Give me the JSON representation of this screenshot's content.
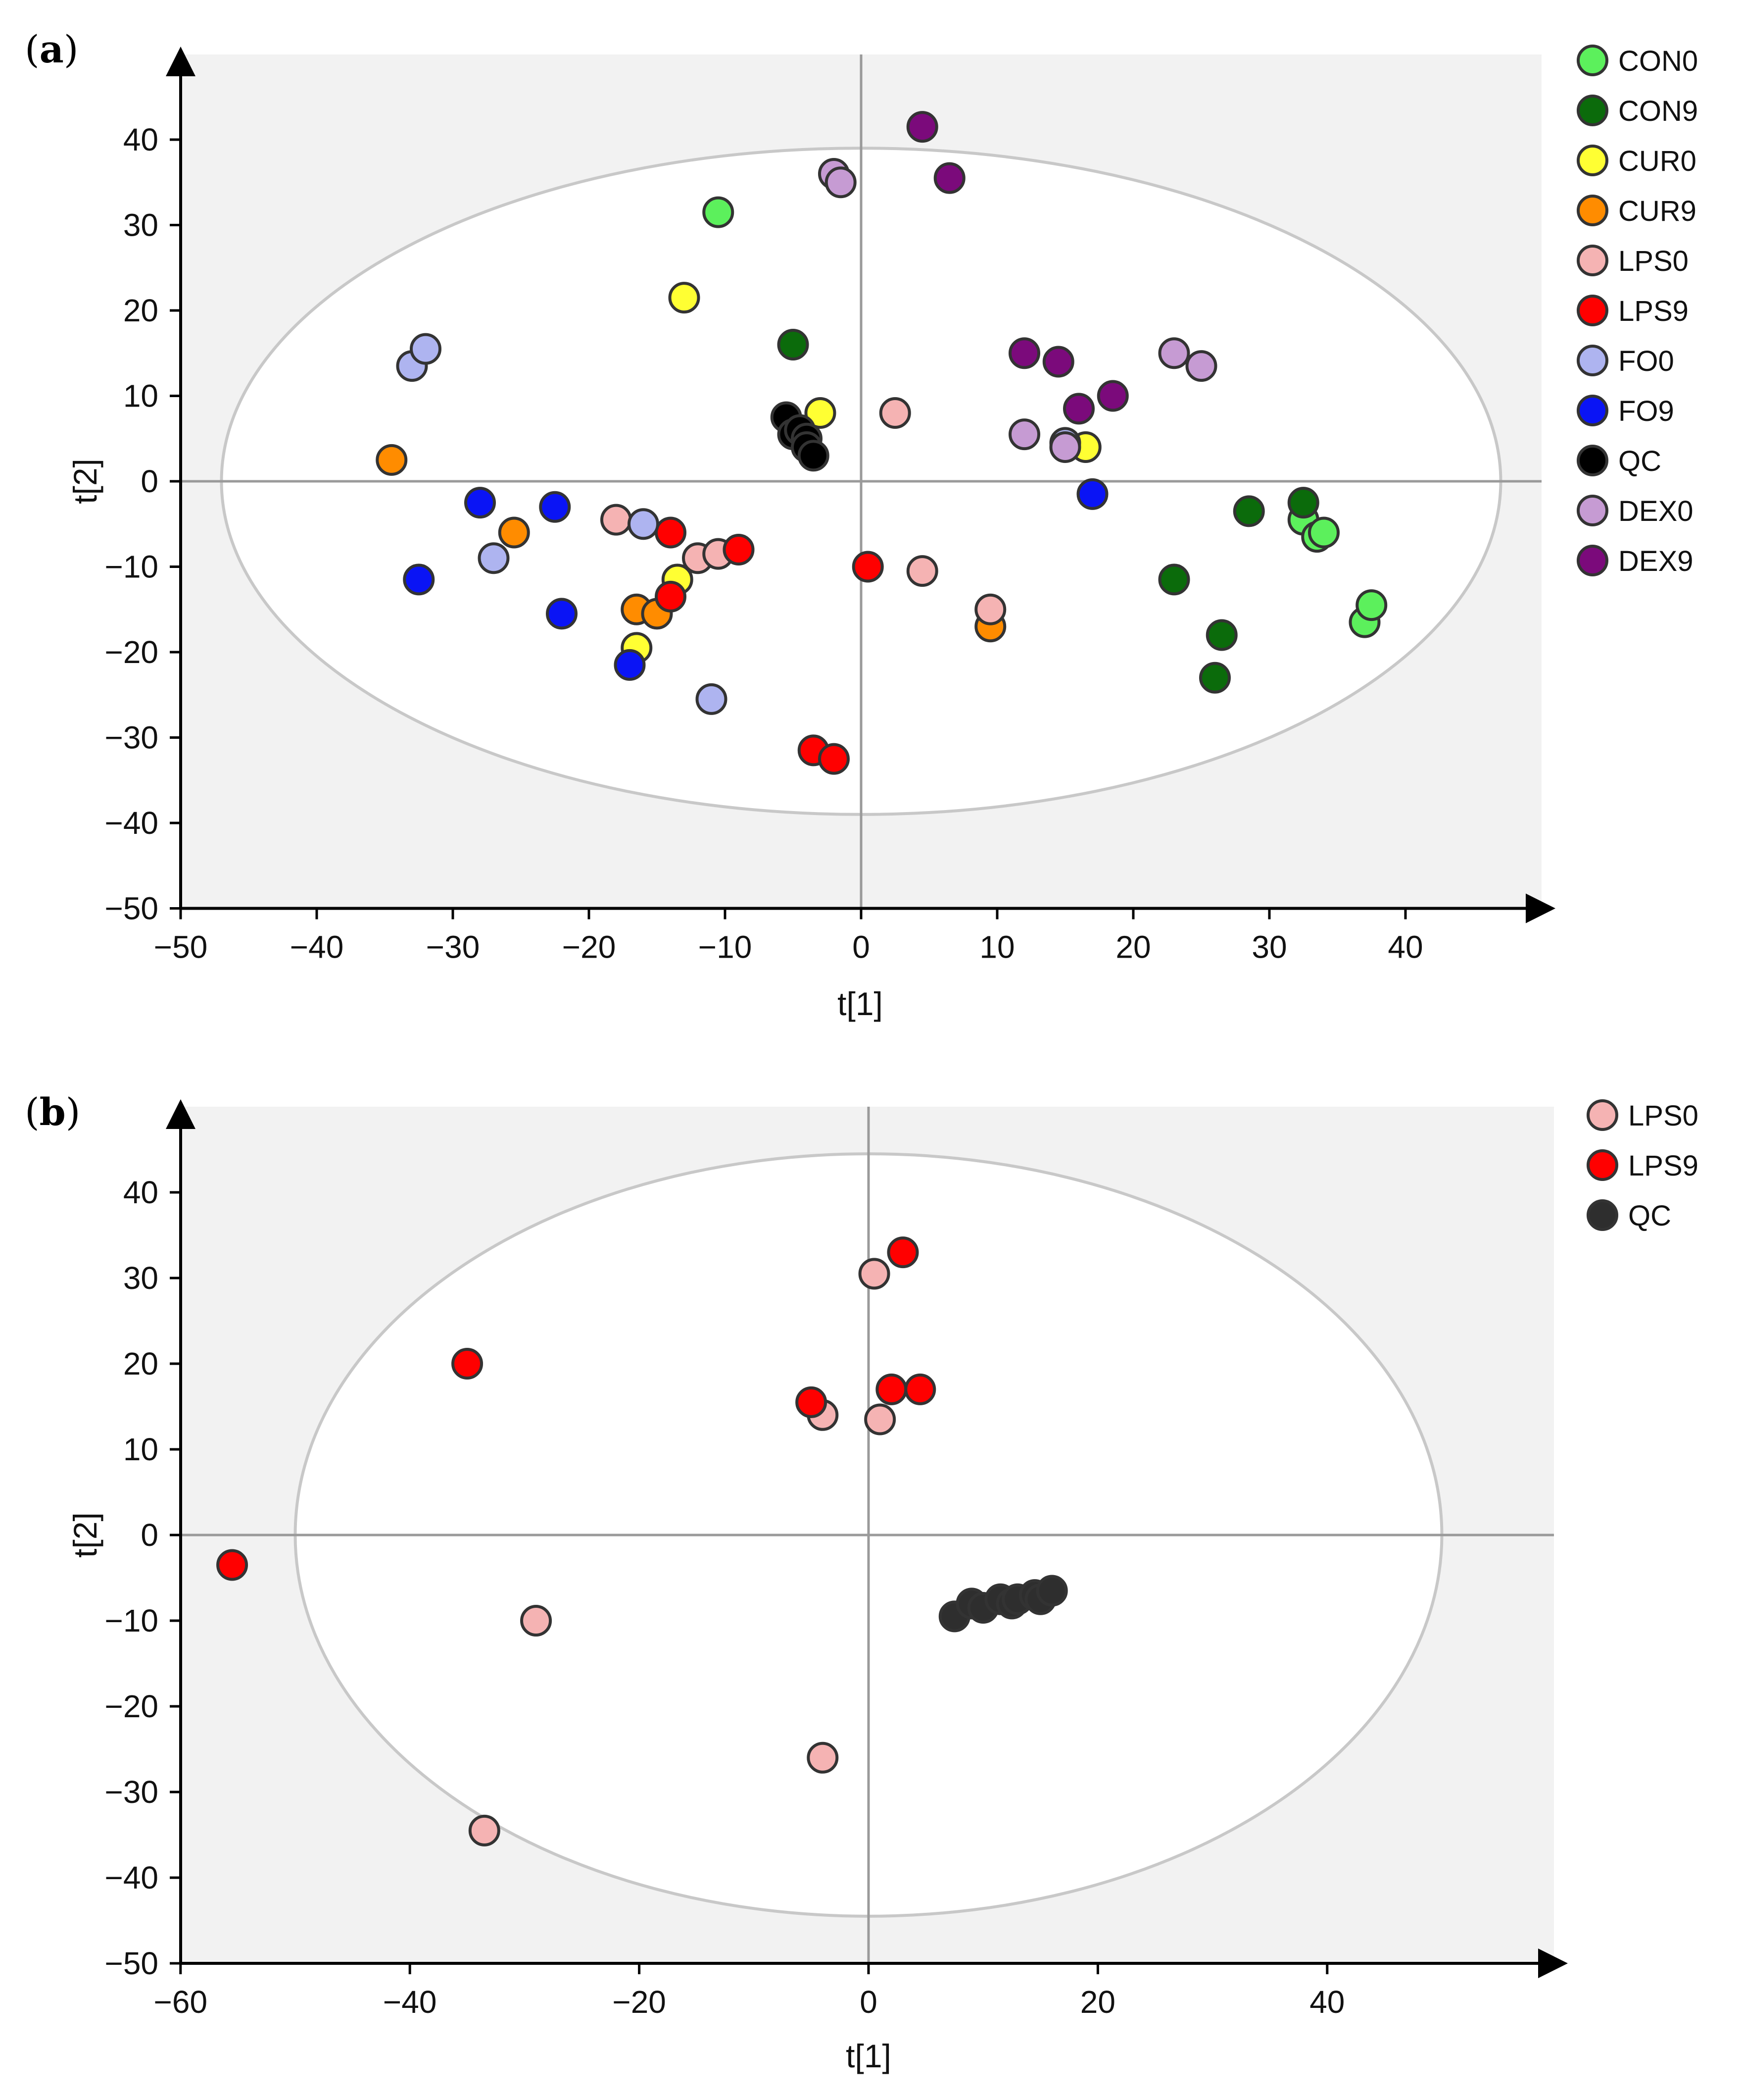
{
  "chart_data": [
    {
      "type": "scatter",
      "panel_label": "(a)",
      "panel_letter": "a",
      "xlabel": "t[1]",
      "ylabel": "t[2]",
      "xlim": [
        -50,
        50
      ],
      "ylim": [
        -50,
        50
      ],
      "xticks": [
        -50,
        -40,
        -30,
        -20,
        -10,
        0,
        10,
        20,
        30,
        40
      ],
      "yticks": [
        -50,
        -40,
        -30,
        -20,
        -10,
        0,
        10,
        20,
        30,
        40
      ],
      "ellipse": {
        "rx": 47,
        "ry": 39
      },
      "legend_position": "right",
      "series": [
        {
          "name": "CON0",
          "color": "#5CF05C",
          "points": [
            [
              -10.5,
              31.5
            ],
            [
              32.5,
              -4.5
            ],
            [
              33.5,
              -6.5
            ],
            [
              34,
              -6
            ],
            [
              37,
              -16.5
            ],
            [
              37.5,
              -14.5
            ]
          ]
        },
        {
          "name": "CON9",
          "color": "#0B6B0B",
          "points": [
            [
              -5,
              16
            ],
            [
              23,
              -11.5
            ],
            [
              26.5,
              -18
            ],
            [
              26,
              -23
            ],
            [
              28.5,
              -3.5
            ],
            [
              32.5,
              -2.5
            ]
          ]
        },
        {
          "name": "CUR0",
          "color": "#FFFF33",
          "points": [
            [
              -13,
              21.5
            ],
            [
              -3,
              8
            ],
            [
              16.5,
              4
            ],
            [
              -13.5,
              -11.5
            ],
            [
              -16.5,
              -19.5
            ]
          ]
        },
        {
          "name": "CUR9",
          "color": "#FF8C00",
          "points": [
            [
              -34.5,
              2.5
            ],
            [
              -25.5,
              -6
            ],
            [
              -16.5,
              -15
            ],
            [
              -15,
              -15.5
            ],
            [
              9.5,
              -17
            ]
          ]
        },
        {
          "name": "LPS0",
          "color": "#F5B3B3",
          "points": [
            [
              2.5,
              8
            ],
            [
              -18,
              -4.5
            ],
            [
              -12,
              -9
            ],
            [
              -10.5,
              -8.5
            ],
            [
              4.5,
              -10.5
            ],
            [
              9.5,
              -15
            ]
          ]
        },
        {
          "name": "LPS9",
          "color": "#FF0000",
          "points": [
            [
              -14,
              -6
            ],
            [
              -9,
              -8
            ],
            [
              0.5,
              -10
            ],
            [
              -14,
              -13.5
            ],
            [
              -3.5,
              -31.5
            ],
            [
              -2,
              -32.5
            ]
          ]
        },
        {
          "name": "FO0",
          "color": "#AEB4F0",
          "points": [
            [
              -33,
              13.5
            ],
            [
              -32,
              15.5
            ],
            [
              -27,
              -9
            ],
            [
              -16,
              -5
            ],
            [
              -11,
              -25.5
            ],
            [
              15,
              4.5
            ]
          ]
        },
        {
          "name": "FO9",
          "color": "#0A14F5",
          "points": [
            [
              -28,
              -2.5
            ],
            [
              -22.5,
              -3
            ],
            [
              -32.5,
              -11.5
            ],
            [
              -22,
              -15.5
            ],
            [
              -17,
              -21.5
            ],
            [
              17,
              -1.5
            ]
          ]
        },
        {
          "name": "QC",
          "color": "#000000",
          "points": [
            [
              -5.5,
              7.5
            ],
            [
              -5,
              5.5
            ],
            [
              -4.5,
              6
            ],
            [
              -4,
              5
            ],
            [
              -4,
              4
            ],
            [
              -3.5,
              3
            ]
          ]
        },
        {
          "name": "DEX0",
          "color": "#C69BD3",
          "points": [
            [
              -2,
              36
            ],
            [
              -1.5,
              35
            ],
            [
              12,
              5.5
            ],
            [
              15,
              4
            ],
            [
              23,
              15
            ],
            [
              25,
              13.5
            ]
          ]
        },
        {
          "name": "DEX9",
          "color": "#7B0A7B",
          "points": [
            [
              4.5,
              41.5
            ],
            [
              6.5,
              35.5
            ],
            [
              12,
              15
            ],
            [
              14.5,
              14
            ],
            [
              16,
              8.5
            ],
            [
              18.5,
              10
            ]
          ]
        }
      ]
    },
    {
      "type": "scatter",
      "panel_label": "(b)",
      "panel_letter": "b",
      "xlabel": "t[1]",
      "ylabel": "t[2]",
      "xlim": [
        -60,
        60
      ],
      "ylim": [
        -50,
        50
      ],
      "xticks": [
        -60,
        -40,
        -20,
        0,
        20,
        40
      ],
      "yticks": [
        -50,
        -40,
        -30,
        -20,
        -10,
        0,
        10,
        20,
        30,
        40
      ],
      "ellipse": {
        "rx": 50,
        "ry": 44.5
      },
      "legend_position": "right",
      "series": [
        {
          "name": "LPS0",
          "color": "#F5B3B3",
          "points": [
            [
              0.5,
              30.5
            ],
            [
              -4,
              14
            ],
            [
              1,
              13.5
            ],
            [
              -29,
              -10
            ],
            [
              -4,
              -26
            ],
            [
              -33.5,
              -34.5
            ]
          ]
        },
        {
          "name": "LPS9",
          "color": "#FF0000",
          "points": [
            [
              3,
              33
            ],
            [
              -35,
              20
            ],
            [
              -5,
              15.5
            ],
            [
              2,
              17
            ],
            [
              4.5,
              17
            ],
            [
              -55.5,
              -3.5
            ]
          ]
        },
        {
          "name": "QC",
          "color": "#2E2E2E",
          "points": [
            [
              7.5,
              -9.5
            ],
            [
              9,
              -8
            ],
            [
              10,
              -8.5
            ],
            [
              11.5,
              -7.5
            ],
            [
              12.5,
              -8
            ],
            [
              13,
              -7.5
            ],
            [
              14.5,
              -7
            ],
            [
              15,
              -7.5
            ],
            [
              16,
              -6.5
            ]
          ]
        }
      ]
    }
  ]
}
